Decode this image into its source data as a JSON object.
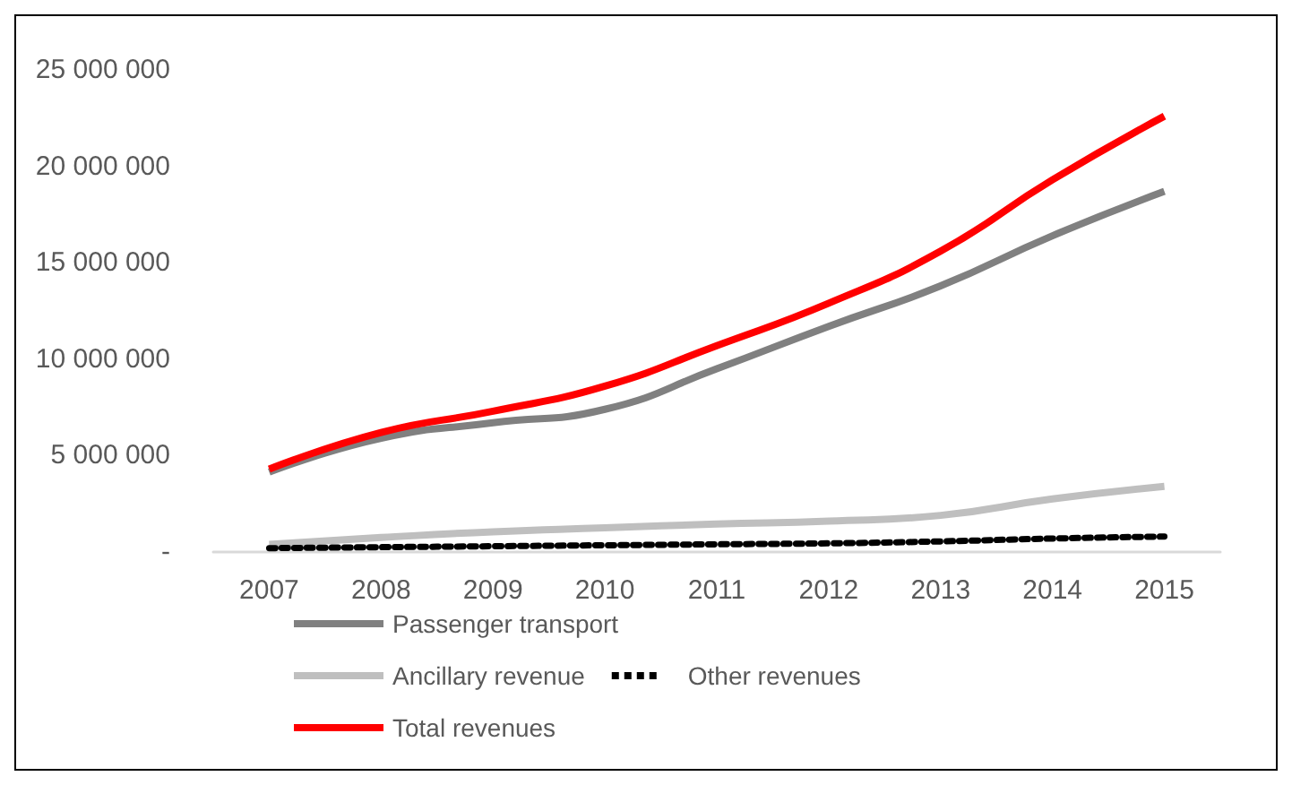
{
  "chart_data": {
    "type": "line",
    "categories": [
      "2007",
      "2008",
      "2009",
      "2010",
      "2011",
      "2012",
      "2013",
      "2014",
      "2015"
    ],
    "series": [
      {
        "name": "Passenger transport",
        "color": "#808080",
        "line_style": "solid",
        "values": [
          4150000,
          5900000,
          6700000,
          7400000,
          9500000,
          11700000,
          13800000,
          16400000,
          18700000
        ]
      },
      {
        "name": "Ancillary revenue",
        "color": "#bfbfbf",
        "line_style": "solid",
        "values": [
          400000,
          750000,
          1050000,
          1250000,
          1450000,
          1600000,
          1900000,
          2750000,
          3400000
        ]
      },
      {
        "name": "Other revenues",
        "color": "#000000",
        "line_style": "dotted",
        "values": [
          200000,
          250000,
          300000,
          350000,
          400000,
          450000,
          550000,
          700000,
          800000
        ]
      },
      {
        "name": "Total revenues",
        "color": "#ff0000",
        "line_style": "solid",
        "values": [
          4300000,
          6200000,
          7300000,
          8600000,
          10700000,
          12900000,
          15600000,
          19300000,
          22600000
        ]
      }
    ],
    "ylim": [
      0,
      25000000
    ],
    "yticks": [
      {
        "value": 0,
        "label": "-"
      },
      {
        "value": 5000000,
        "label": "5 000 000"
      },
      {
        "value": 10000000,
        "label": "10 000 000"
      },
      {
        "value": 15000000,
        "label": "15 000 000"
      },
      {
        "value": 20000000,
        "label": "20 000 000"
      },
      {
        "value": 25000000,
        "label": "25 000 000"
      }
    ],
    "grid": false,
    "legend": "bottom",
    "marker": "none"
  }
}
